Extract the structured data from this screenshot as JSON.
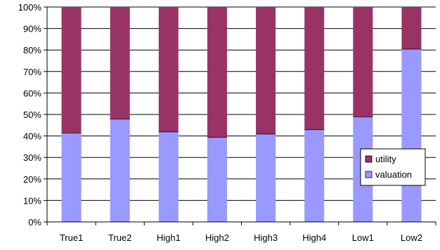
{
  "chart_data": {
    "type": "bar",
    "stacked": "percent",
    "categories": [
      "True1",
      "True2",
      "High1",
      "High2",
      "High3",
      "High4",
      "Low1",
      "Low2"
    ],
    "series": [
      {
        "name": "valuation",
        "color": "#9999ff",
        "values": [
          41.5,
          48,
          42,
          39.5,
          41,
          43,
          49,
          80.5
        ]
      },
      {
        "name": "utility",
        "color": "#993366",
        "values": [
          58.5,
          52,
          58,
          60.5,
          59,
          57,
          51,
          19.5
        ]
      }
    ],
    "ylim": [
      0,
      100
    ],
    "y_ticks": [
      "0%",
      "10%",
      "20%",
      "30%",
      "40%",
      "50%",
      "60%",
      "70%",
      "80%",
      "90%",
      "100%"
    ],
    "grid": true,
    "legend": {
      "position": "right",
      "entries": [
        "utility",
        "valuation"
      ]
    }
  }
}
